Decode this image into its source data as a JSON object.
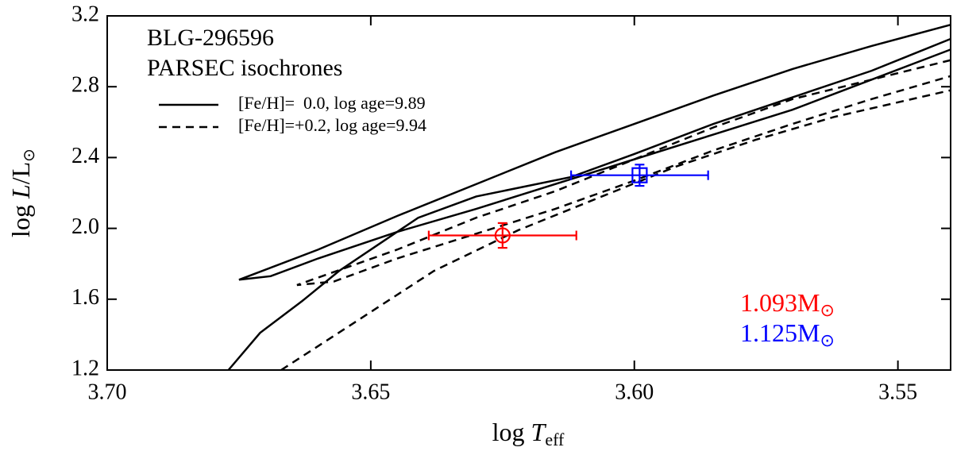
{
  "chart_data": {
    "type": "line",
    "title": [
      "BLG-296596",
      "PARSEC isochrones"
    ],
    "xlabel": [
      "log ",
      "T",
      "eff"
    ],
    "ylabel": [
      "log ",
      "L",
      "/L",
      "⊙"
    ],
    "xlim": [
      3.7,
      3.54
    ],
    "ylim": [
      1.2,
      3.2
    ],
    "xticks": [
      {
        "value": 3.7,
        "label": "3.70"
      },
      {
        "value": 3.65,
        "label": "3.65"
      },
      {
        "value": 3.6,
        "label": "3.60"
      },
      {
        "value": 3.55,
        "label": "3.55"
      }
    ],
    "yticks": [
      {
        "value": 1.2,
        "label": "1.2"
      },
      {
        "value": 1.6,
        "label": "1.6"
      },
      {
        "value": 2.0,
        "label": "2.0"
      },
      {
        "value": 2.4,
        "label": "2.4"
      },
      {
        "value": 2.8,
        "label": "2.8"
      },
      {
        "value": 3.2,
        "label": "3.2"
      }
    ],
    "legend": "upper left",
    "series": [
      {
        "name": "[Fe/H]=  0.0, log age=9.89",
        "color": "#000000",
        "linestyle": "solid",
        "x": [
          3.677,
          3.671,
          3.663,
          3.656,
          3.648,
          3.641,
          3.63,
          3.612,
          3.6,
          3.585,
          3.57,
          3.555,
          3.54,
          null,
          3.54,
          3.555,
          3.57,
          3.585,
          3.6,
          3.615,
          3.63,
          3.645,
          3.66,
          3.675,
          3.669,
          3.66,
          3.645,
          3.63,
          3.615,
          3.6,
          3.585,
          3.57,
          3.555,
          3.54
        ],
        "values": [
          1.2,
          1.41,
          1.59,
          1.76,
          1.92,
          2.06,
          2.18,
          2.29,
          2.42,
          2.59,
          2.74,
          2.89,
          3.07,
          null,
          3.15,
          3.03,
          2.9,
          2.75,
          2.59,
          2.43,
          2.25,
          2.07,
          1.88,
          1.71,
          1.73,
          1.83,
          1.98,
          2.11,
          2.25,
          2.39,
          2.53,
          2.67,
          2.84,
          3.01
        ]
      },
      {
        "name": "[Fe/H]=+0.2, log age=9.94",
        "color": "#000000",
        "linestyle": "dashed",
        "x": [
          3.667,
          3.653,
          3.638,
          3.622,
          3.607,
          3.592,
          3.577,
          3.562,
          3.54,
          null,
          3.54,
          3.555,
          3.57,
          3.585,
          3.6,
          3.615,
          3.63,
          3.645,
          3.664,
          3.657,
          3.645,
          3.63,
          3.615,
          3.6,
          3.585,
          3.57,
          3.555,
          3.54
        ],
        "values": [
          1.2,
          1.47,
          1.76,
          1.99,
          2.17,
          2.35,
          2.5,
          2.63,
          2.78,
          null,
          2.95,
          2.84,
          2.73,
          2.57,
          2.39,
          2.21,
          2.06,
          1.88,
          1.68,
          1.7,
          1.83,
          1.97,
          2.11,
          2.27,
          2.44,
          2.59,
          2.73,
          2.86
        ]
      }
    ],
    "points": [
      {
        "x": 3.625,
        "y": 1.96,
        "xerr": 0.014,
        "yerr": 0.07,
        "marker": "circle",
        "color": "#ff0000",
        "label": [
          "1.093M",
          "⊙"
        ]
      },
      {
        "x": 3.599,
        "y": 2.3,
        "xerr": 0.013,
        "yerr": 0.06,
        "marker": "square",
        "color": "#0000ff",
        "label": [
          "1.125M",
          "⊙"
        ]
      }
    ]
  }
}
